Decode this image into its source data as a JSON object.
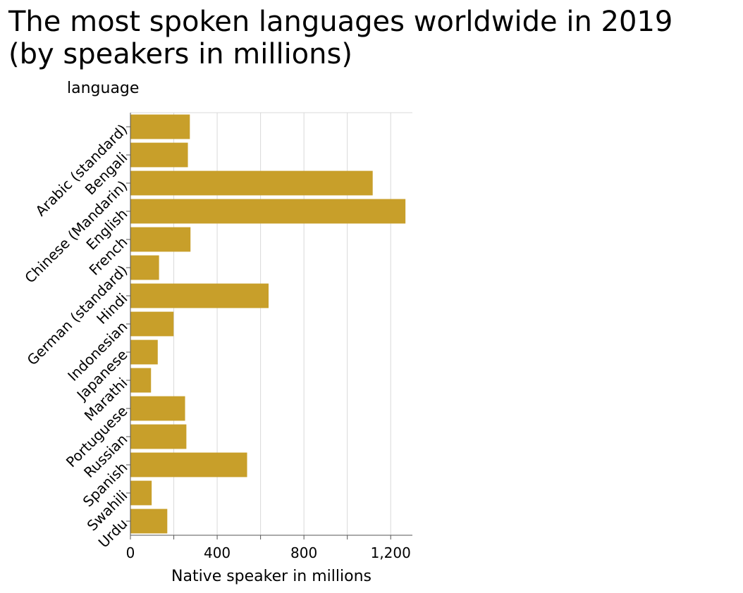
{
  "chart_data": {
    "type": "bar",
    "orientation": "horizontal",
    "title": "The most spoken languages worldwide in 2019 (by speakers in millions)",
    "title_lines": [
      "The most spoken languages worldwide in 2019",
      "(by speakers in millions)"
    ],
    "xlabel": "Native speaker in millions",
    "ylabel": "language",
    "xlim": [
      0,
      1300
    ],
    "xticks": [
      0,
      400,
      800,
      1200
    ],
    "xtick_labels": [
      "0",
      "400",
      "800",
      "1,200"
    ],
    "grid": "vertical",
    "bar_color": "#c89f2a",
    "categories": [
      "Arabic (standard)",
      "Bengali",
      "Chinese (Mandarin)",
      "English",
      "French",
      "German (standard)",
      "Hindi",
      "Indonesian",
      "Japanese",
      "Marathi",
      "Portuguese",
      "Russian",
      "Spanish",
      "Swahili",
      "Urdu"
    ],
    "values": [
      274,
      265,
      1117,
      1268,
      277,
      132,
      637,
      199,
      126,
      95,
      252,
      258,
      538,
      98,
      170
    ]
  }
}
